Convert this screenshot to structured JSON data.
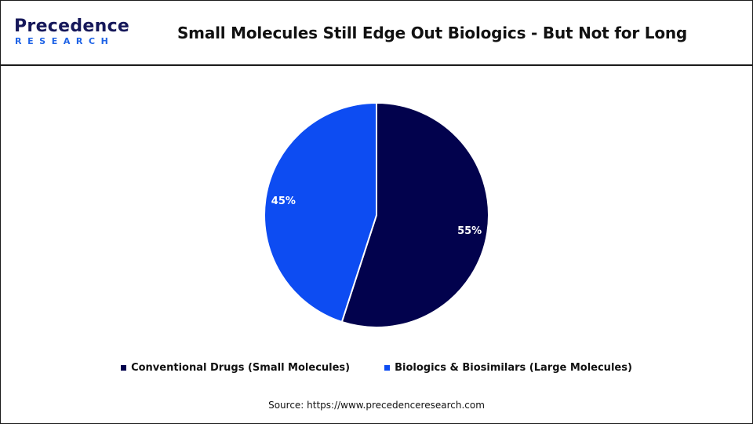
{
  "logo": {
    "word": "Precedence",
    "sub": "RESEARCH"
  },
  "title": "Small Molecules Still Edge Out Biologics - But Not for Long",
  "source": "Source: https://www.precedenceresearch.com",
  "colors": {
    "navy": "#02024d",
    "blue": "#0d4cf2",
    "logo_navy": "#16185a",
    "logo_blue": "#1f63e6"
  },
  "chart_data": {
    "type": "pie",
    "title": "Small Molecules Still Edge Out Biologics - But Not for Long",
    "legend_position": "bottom",
    "slices": [
      {
        "label": "Conventional Drugs (Small Molecules)",
        "value": 55,
        "display": "55%",
        "color": "#02024d"
      },
      {
        "label": "Biologics & Biosimilars (Large Molecules)",
        "value": 45,
        "display": "45%",
        "color": "#0d4cf2"
      }
    ]
  }
}
